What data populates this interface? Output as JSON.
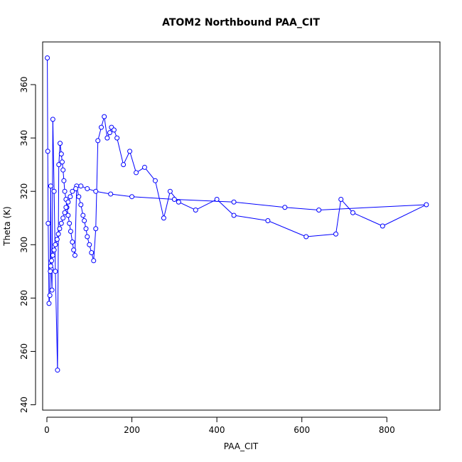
{
  "chart_data": {
    "type": "line",
    "title": "ATOM2 Northbound PAA_CIT",
    "xlabel": "PAA_CIT",
    "ylabel": "Theta (K)",
    "xlim": [
      -10,
      925
    ],
    "ylim": [
      238,
      376
    ],
    "xticks": [
      0,
      200,
      400,
      600,
      800
    ],
    "yticks": [
      240,
      260,
      280,
      300,
      320,
      340,
      360
    ],
    "x_tick_labels": [
      "0",
      "200",
      "400",
      "600",
      "800"
    ],
    "y_tick_labels": [
      "240",
      "260",
      "280",
      "300",
      "320",
      "340",
      "360"
    ],
    "grid": false,
    "legend": "none",
    "marker": "open-circle",
    "series_color": "#0000ff",
    "series": [
      {
        "x": [
          1,
          2,
          3,
          5,
          7,
          9,
          10,
          12,
          14,
          17,
          20,
          25,
          28,
          31,
          34,
          36,
          38,
          40,
          42,
          45,
          47,
          50,
          53,
          56,
          60,
          63,
          66,
          70,
          75,
          80,
          85,
          88,
          92,
          95,
          100,
          105,
          110,
          115,
          120,
          128,
          135,
          142,
          148,
          152,
          158,
          165,
          180,
          195,
          210,
          230,
          255,
          275,
          290,
          310,
          350,
          400,
          440,
          520,
          610,
          680,
          692,
          720,
          790,
          893,
          640,
          560,
          440,
          300,
          200,
          150,
          115,
          95,
          80,
          68,
          60,
          55,
          50,
          45,
          42,
          38,
          34,
          30,
          27,
          24,
          20,
          17,
          14,
          11,
          9,
          8
        ],
        "y": [
          370,
          335,
          308,
          278,
          281,
          322,
          291,
          283,
          347,
          320,
          290,
          253,
          330,
          338,
          334,
          331,
          328,
          324,
          320,
          317,
          314,
          311,
          308,
          305,
          301,
          298,
          296,
          322,
          318,
          315,
          311,
          309,
          306,
          303,
          300,
          297,
          294,
          306,
          339,
          344,
          348,
          340,
          342,
          344,
          343,
          340,
          330,
          335,
          327,
          329,
          324,
          310,
          320,
          316,
          313,
          317,
          311,
          309,
          303,
          304,
          317,
          312,
          307,
          315,
          313,
          314,
          316,
          317,
          318,
          319,
          320,
          321,
          322,
          321,
          320,
          318,
          316,
          314,
          312,
          310,
          308,
          306,
          304,
          302,
          300,
          298,
          296,
          294,
          292,
          290
        ]
      }
    ]
  }
}
